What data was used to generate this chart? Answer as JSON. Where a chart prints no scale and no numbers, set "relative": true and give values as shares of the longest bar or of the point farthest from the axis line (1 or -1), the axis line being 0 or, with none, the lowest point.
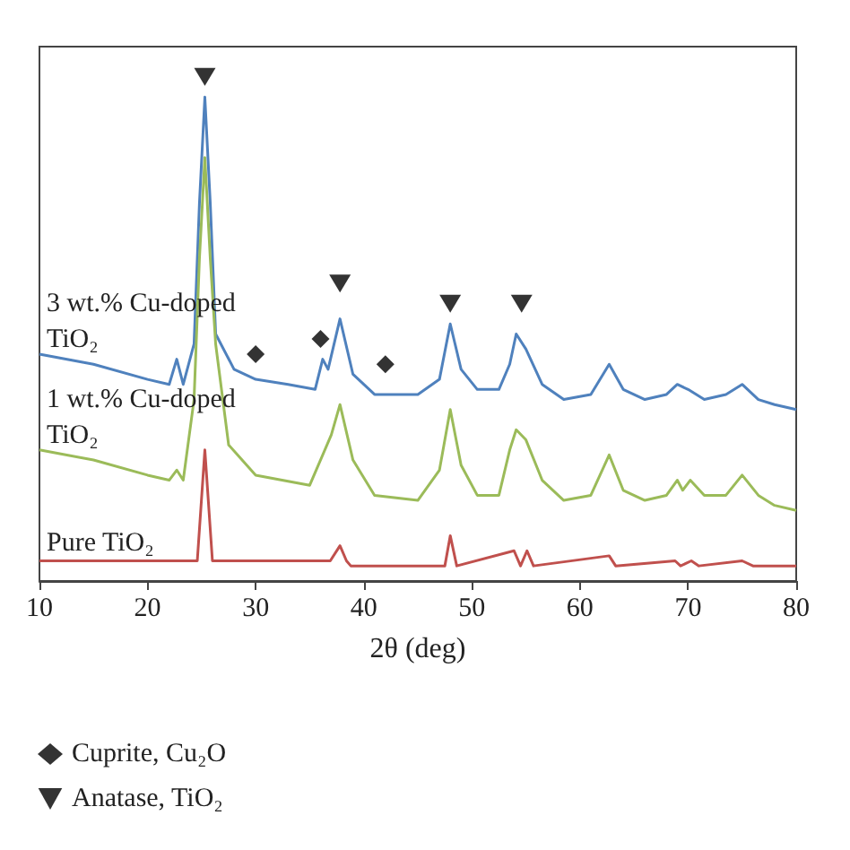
{
  "chart_data": {
    "type": "line",
    "relative": true,
    "xlabel": "2θ (deg)",
    "xlim": [
      10,
      80
    ],
    "xticks": [
      10,
      20,
      30,
      40,
      50,
      60,
      70,
      80
    ],
    "legend": "bottom left",
    "grid": false,
    "marker": "none",
    "line_style": "solid",
    "series": [
      {
        "name": "3 wt.% Cu-doped TiO₂",
        "color": "#4f81bd",
        "x": [
          10,
          15,
          20,
          22,
          22.7,
          23.3,
          24.3,
          24.8,
          25.3,
          25.8,
          26.3,
          28,
          30,
          33,
          35.5,
          36.2,
          36.7,
          37.8,
          39,
          41,
          45,
          47,
          48,
          49,
          50.5,
          52.5,
          53.5,
          54.1,
          55,
          56.5,
          58.5,
          61,
          62.7,
          64,
          66,
          68,
          69,
          70,
          71.5,
          73.5,
          75,
          76.5,
          78,
          80
        ],
        "values": [
          0.45,
          0.43,
          0.4,
          0.39,
          0.44,
          0.39,
          0.47,
          0.75,
          0.96,
          0.75,
          0.49,
          0.42,
          0.4,
          0.39,
          0.38,
          0.44,
          0.42,
          0.52,
          0.41,
          0.37,
          0.37,
          0.4,
          0.51,
          0.42,
          0.38,
          0.38,
          0.43,
          0.49,
          0.46,
          0.39,
          0.36,
          0.37,
          0.43,
          0.38,
          0.36,
          0.37,
          0.39,
          0.38,
          0.36,
          0.37,
          0.39,
          0.36,
          0.35,
          0.34
        ]
      },
      {
        "name": "1 wt.% Cu-doped TiO₂",
        "color": "#9bbb59",
        "x": [
          10,
          15,
          20,
          22,
          22.7,
          23.3,
          24.3,
          24.8,
          25.3,
          25.8,
          26.3,
          27.5,
          30,
          35,
          37,
          37.8,
          39,
          41,
          45,
          47,
          48,
          49,
          50.5,
          52.5,
          53.5,
          54.1,
          55,
          56.5,
          58.5,
          61,
          62.7,
          64,
          66,
          68,
          69,
          69.5,
          70.2,
          71.5,
          73.5,
          75,
          76.5,
          78,
          80
        ],
        "values": [
          0.26,
          0.24,
          0.21,
          0.2,
          0.22,
          0.2,
          0.36,
          0.64,
          0.84,
          0.64,
          0.47,
          0.27,
          0.21,
          0.19,
          0.29,
          0.35,
          0.24,
          0.17,
          0.16,
          0.22,
          0.34,
          0.23,
          0.17,
          0.17,
          0.26,
          0.3,
          0.28,
          0.2,
          0.16,
          0.17,
          0.25,
          0.18,
          0.16,
          0.17,
          0.2,
          0.18,
          0.2,
          0.17,
          0.17,
          0.21,
          0.17,
          0.15,
          0.14
        ]
      },
      {
        "name": "Pure TiO₂",
        "color": "#c0504d",
        "x": [
          10,
          24.6,
          25.3,
          26,
          36.9,
          37.8,
          38.4,
          38.8,
          47.5,
          48,
          48.6,
          53.9,
          54.5,
          55.1,
          55.7,
          62.7,
          63.3,
          68.8,
          69.3,
          70.3,
          71,
          75,
          76,
          80
        ],
        "values": [
          0.04,
          0.04,
          0.26,
          0.04,
          0.04,
          0.07,
          0.04,
          0.03,
          0.03,
          0.09,
          0.03,
          0.06,
          0.03,
          0.06,
          0.03,
          0.05,
          0.03,
          0.04,
          0.03,
          0.04,
          0.03,
          0.04,
          0.03,
          0.03
        ]
      },
      {
        "name": "Cuprite, Cu₂O",
        "type": "scatter",
        "marker": "diamond",
        "color": "#000000",
        "x": [
          30,
          36,
          42
        ],
        "values": [
          0.45,
          0.48,
          0.43
        ]
      },
      {
        "name": "Anatase, TiO₂",
        "type": "scatter",
        "marker": "triangle",
        "color": "#000000",
        "x": [
          25.3,
          37.8,
          48,
          54.6
        ],
        "values": [
          1,
          0.59,
          0.55,
          0.55
        ]
      }
    ]
  }
}
